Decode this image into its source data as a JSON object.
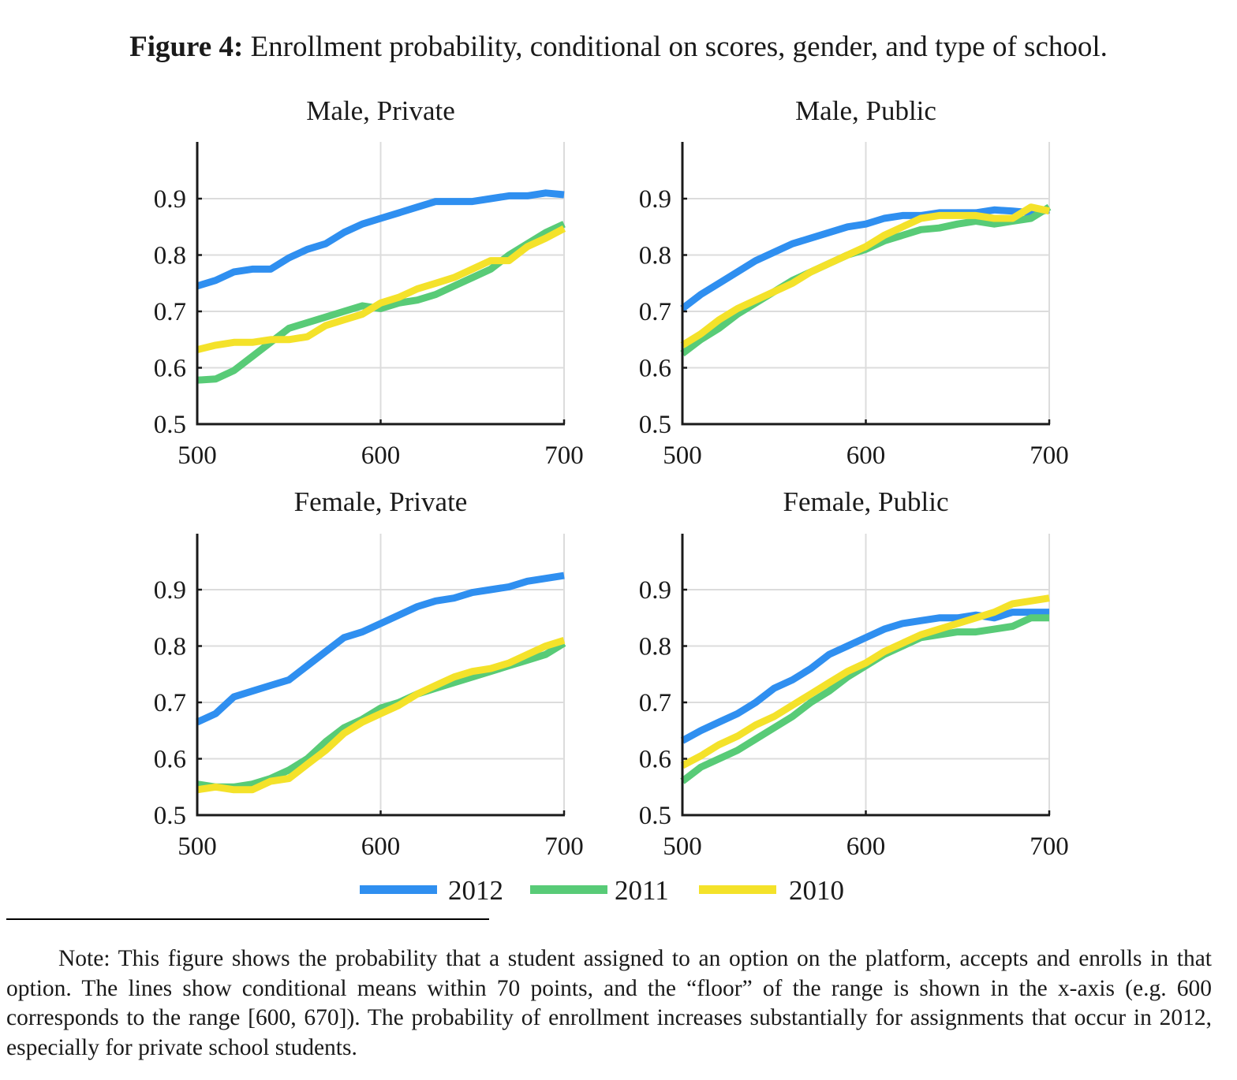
{
  "figure": {
    "label": "Figure 4:",
    "caption": " Enrollment probability, conditional on scores, gender, and type of school."
  },
  "note": "Note: This figure shows the probability that a student assigned to an option on the platform, accepts and enrolls in that option. The lines show conditional means within 70 points, and the “floor” of the range is shown in the x-axis (e.g. 600 corresponds to the range [600, 670]). The probability of enrollment increases substantially for assignments that occur in 2012, especially for private school students.",
  "colors": {
    "2012": "#2f8ff0",
    "2011": "#58cb77",
    "2010": "#f4e22a",
    "grid": "#dcdcdc",
    "axis": "#1a1a1a"
  },
  "chart_data": [
    {
      "type": "line",
      "title": "Male, Private",
      "xlabel": "",
      "ylabel": "",
      "xlim": [
        500,
        700
      ],
      "ylim": [
        0.5,
        1.0
      ],
      "xticks": [
        500,
        600,
        700
      ],
      "xtick_labels": [
        "500",
        "600",
        "700"
      ],
      "yticks": [
        0.5,
        0.6,
        0.7,
        0.8,
        0.9
      ],
      "ytick_labels": [
        "0.5",
        "0.6",
        "0.7",
        "0.8",
        "0.9"
      ],
      "grid": true,
      "x": [
        500,
        510,
        520,
        530,
        540,
        550,
        560,
        570,
        580,
        590,
        600,
        610,
        620,
        630,
        640,
        650,
        660,
        670,
        680,
        690,
        700
      ],
      "series": [
        {
          "name": "2012",
          "values": [
            0.745,
            0.755,
            0.77,
            0.775,
            0.775,
            0.795,
            0.81,
            0.82,
            0.84,
            0.855,
            0.865,
            0.875,
            0.885,
            0.895,
            0.895,
            0.895,
            0.9,
            0.905,
            0.905,
            0.91,
            0.907
          ]
        },
        {
          "name": "2011",
          "values": [
            0.578,
            0.58,
            0.595,
            0.62,
            0.645,
            0.67,
            0.68,
            0.69,
            0.7,
            0.71,
            0.705,
            0.715,
            0.72,
            0.73,
            0.745,
            0.76,
            0.775,
            0.8,
            0.82,
            0.84,
            0.855
          ]
        },
        {
          "name": "2010",
          "values": [
            0.632,
            0.64,
            0.645,
            0.645,
            0.65,
            0.65,
            0.655,
            0.675,
            0.685,
            0.695,
            0.715,
            0.725,
            0.74,
            0.75,
            0.76,
            0.775,
            0.79,
            0.79,
            0.815,
            0.83,
            0.847
          ]
        }
      ]
    },
    {
      "type": "line",
      "title": "Male, Public",
      "xlabel": "",
      "ylabel": "",
      "xlim": [
        500,
        700
      ],
      "ylim": [
        0.5,
        1.0
      ],
      "xticks": [
        500,
        600,
        700
      ],
      "xtick_labels": [
        "500",
        "600",
        "700"
      ],
      "yticks": [
        0.5,
        0.6,
        0.7,
        0.8,
        0.9
      ],
      "ytick_labels": [
        "0.5",
        "0.6",
        "0.7",
        "0.8",
        "0.9"
      ],
      "grid": true,
      "x": [
        500,
        510,
        520,
        530,
        540,
        550,
        560,
        570,
        580,
        590,
        600,
        610,
        620,
        630,
        640,
        650,
        660,
        670,
        680,
        690,
        700
      ],
      "series": [
        {
          "name": "2012",
          "values": [
            0.705,
            0.73,
            0.75,
            0.77,
            0.79,
            0.805,
            0.82,
            0.83,
            0.84,
            0.85,
            0.855,
            0.865,
            0.87,
            0.87,
            0.875,
            0.875,
            0.875,
            0.88,
            0.878,
            0.875,
            0.88
          ]
        },
        {
          "name": "2011",
          "values": [
            0.625,
            0.65,
            0.67,
            0.695,
            0.715,
            0.735,
            0.755,
            0.77,
            0.785,
            0.8,
            0.81,
            0.825,
            0.835,
            0.845,
            0.848,
            0.855,
            0.86,
            0.855,
            0.86,
            0.865,
            0.885
          ]
        },
        {
          "name": "2010",
          "values": [
            0.64,
            0.66,
            0.685,
            0.705,
            0.72,
            0.735,
            0.75,
            0.77,
            0.785,
            0.8,
            0.815,
            0.835,
            0.85,
            0.865,
            0.87,
            0.87,
            0.87,
            0.865,
            0.865,
            0.885,
            0.878
          ]
        }
      ]
    },
    {
      "type": "line",
      "title": "Female, Private",
      "xlabel": "",
      "ylabel": "",
      "xlim": [
        500,
        700
      ],
      "ylim": [
        0.5,
        1.0
      ],
      "xticks": [
        500,
        600,
        700
      ],
      "xtick_labels": [
        "500",
        "600",
        "700"
      ],
      "yticks": [
        0.5,
        0.6,
        0.7,
        0.8,
        0.9
      ],
      "ytick_labels": [
        "0.5",
        "0.6",
        "0.7",
        "0.8",
        "0.9"
      ],
      "grid": true,
      "x": [
        500,
        510,
        520,
        530,
        540,
        550,
        560,
        570,
        580,
        590,
        600,
        610,
        620,
        630,
        640,
        650,
        660,
        670,
        680,
        690,
        700
      ],
      "series": [
        {
          "name": "2012",
          "values": [
            0.665,
            0.68,
            0.71,
            0.72,
            0.73,
            0.74,
            0.765,
            0.79,
            0.815,
            0.825,
            0.84,
            0.855,
            0.87,
            0.88,
            0.885,
            0.895,
            0.9,
            0.905,
            0.915,
            0.92,
            0.925
          ]
        },
        {
          "name": "2011",
          "values": [
            0.555,
            0.55,
            0.55,
            0.555,
            0.565,
            0.58,
            0.6,
            0.63,
            0.655,
            0.67,
            0.69,
            0.7,
            0.715,
            0.725,
            0.735,
            0.745,
            0.755,
            0.765,
            0.775,
            0.785,
            0.805
          ]
        },
        {
          "name": "2010",
          "values": [
            0.545,
            0.55,
            0.545,
            0.545,
            0.56,
            0.565,
            0.59,
            0.615,
            0.645,
            0.665,
            0.68,
            0.695,
            0.715,
            0.73,
            0.745,
            0.755,
            0.76,
            0.77,
            0.785,
            0.8,
            0.81
          ]
        }
      ]
    },
    {
      "type": "line",
      "title": "Female, Public",
      "xlabel": "",
      "ylabel": "",
      "xlim": [
        500,
        700
      ],
      "ylim": [
        0.5,
        1.0
      ],
      "xticks": [
        500,
        600,
        700
      ],
      "xtick_labels": [
        "500",
        "600",
        "700"
      ],
      "yticks": [
        0.5,
        0.6,
        0.7,
        0.8,
        0.9
      ],
      "ytick_labels": [
        "0.5",
        "0.6",
        "0.7",
        "0.8",
        "0.9"
      ],
      "grid": true,
      "x": [
        500,
        510,
        520,
        530,
        540,
        550,
        560,
        570,
        580,
        590,
        600,
        610,
        620,
        630,
        640,
        650,
        660,
        670,
        680,
        690,
        700
      ],
      "series": [
        {
          "name": "2012",
          "values": [
            0.632,
            0.65,
            0.665,
            0.68,
            0.7,
            0.725,
            0.74,
            0.76,
            0.785,
            0.8,
            0.815,
            0.83,
            0.84,
            0.845,
            0.85,
            0.85,
            0.855,
            0.85,
            0.86,
            0.86,
            0.86
          ]
        },
        {
          "name": "2011",
          "values": [
            0.56,
            0.585,
            0.6,
            0.615,
            0.635,
            0.655,
            0.675,
            0.7,
            0.72,
            0.745,
            0.765,
            0.785,
            0.8,
            0.815,
            0.82,
            0.825,
            0.825,
            0.83,
            0.835,
            0.85,
            0.85
          ]
        },
        {
          "name": "2010",
          "values": [
            0.588,
            0.605,
            0.625,
            0.64,
            0.66,
            0.675,
            0.695,
            0.715,
            0.735,
            0.755,
            0.77,
            0.79,
            0.805,
            0.82,
            0.83,
            0.84,
            0.85,
            0.86,
            0.875,
            0.88,
            0.885
          ]
        }
      ]
    }
  ],
  "legend": {
    "placement": "bottom-center",
    "items": [
      {
        "label": "2012",
        "color": "#2f8ff0"
      },
      {
        "label": "2011",
        "color": "#58cb77"
      },
      {
        "label": "2010",
        "color": "#f4e22a"
      }
    ]
  }
}
